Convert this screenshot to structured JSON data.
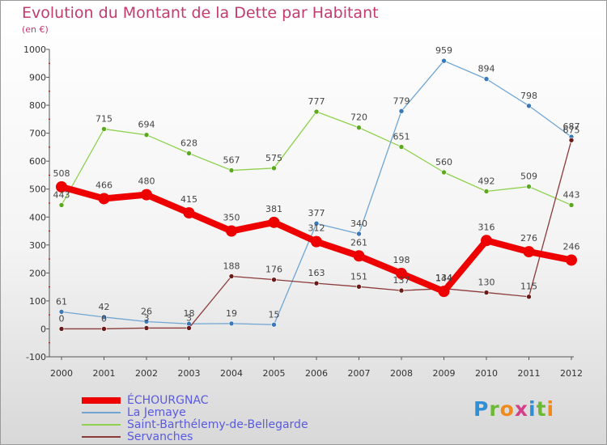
{
  "header": {
    "title": "Evolution du Montant de la Dette par Habitant",
    "subtitle": "(en €)"
  },
  "logo": {
    "text": "Proxiti",
    "letters": [
      {
        "ch": "P",
        "color": "#2e8fd6"
      },
      {
        "ch": "r",
        "color": "#6bb935"
      },
      {
        "ch": "o",
        "color": "#f08a1c"
      },
      {
        "ch": "x",
        "color": "#d43f8a"
      },
      {
        "ch": "i",
        "color": "#2e8fd6"
      },
      {
        "ch": "t",
        "color": "#6bb935"
      },
      {
        "ch": "i",
        "color": "#f08a1c"
      }
    ]
  },
  "chart_data": {
    "type": "line",
    "title": "Evolution du Montant de la Dette par Habitant",
    "subtitle": "(en €)",
    "x": [
      "2000",
      "2001",
      "2002",
      "2003",
      "2004",
      "2005",
      "2006",
      "2007",
      "2008",
      "2009",
      "2010",
      "2011",
      "2012"
    ],
    "ylim": [
      -100,
      1000
    ],
    "yticks": [
      -100,
      0,
      100,
      200,
      300,
      400,
      500,
      600,
      700,
      800,
      900,
      1000
    ],
    "grid": false,
    "legend_position": "bottom",
    "series": [
      {
        "name": "Saint-Barthélemy-de-Bellegarde",
        "color": "#8fd14f",
        "marker": "#5ca81f",
        "thick": false,
        "values": [
          443,
          715,
          694,
          628,
          567,
          575,
          777,
          720,
          651,
          560,
          492,
          509,
          443
        ]
      },
      {
        "name": "La Jemaye",
        "color": "#6fa5d3",
        "marker": "#3a78b8",
        "thick": false,
        "values": [
          61,
          42,
          26,
          18,
          19,
          15,
          377,
          340,
          779,
          959,
          894,
          798,
          687
        ]
      },
      {
        "name": "Servanches",
        "color": "#8b3a3a",
        "marker": "#6b1a1a",
        "thick": false,
        "values": [
          0,
          0,
          3,
          3,
          188,
          176,
          163,
          151,
          137,
          144,
          130,
          115,
          675
        ]
      },
      {
        "name": "ÉCHOURGNAC",
        "color": "#ee0000",
        "marker": "#ee0000",
        "thick": true,
        "values": [
          508,
          466,
          480,
          415,
          350,
          381,
          312,
          261,
          198,
          134,
          316,
          276,
          246
        ]
      }
    ],
    "legend_order": [
      "ÉCHOURGNAC",
      "La Jemaye",
      "Saint-Barthélemy-de-Bellegarde",
      "Servanches"
    ]
  }
}
